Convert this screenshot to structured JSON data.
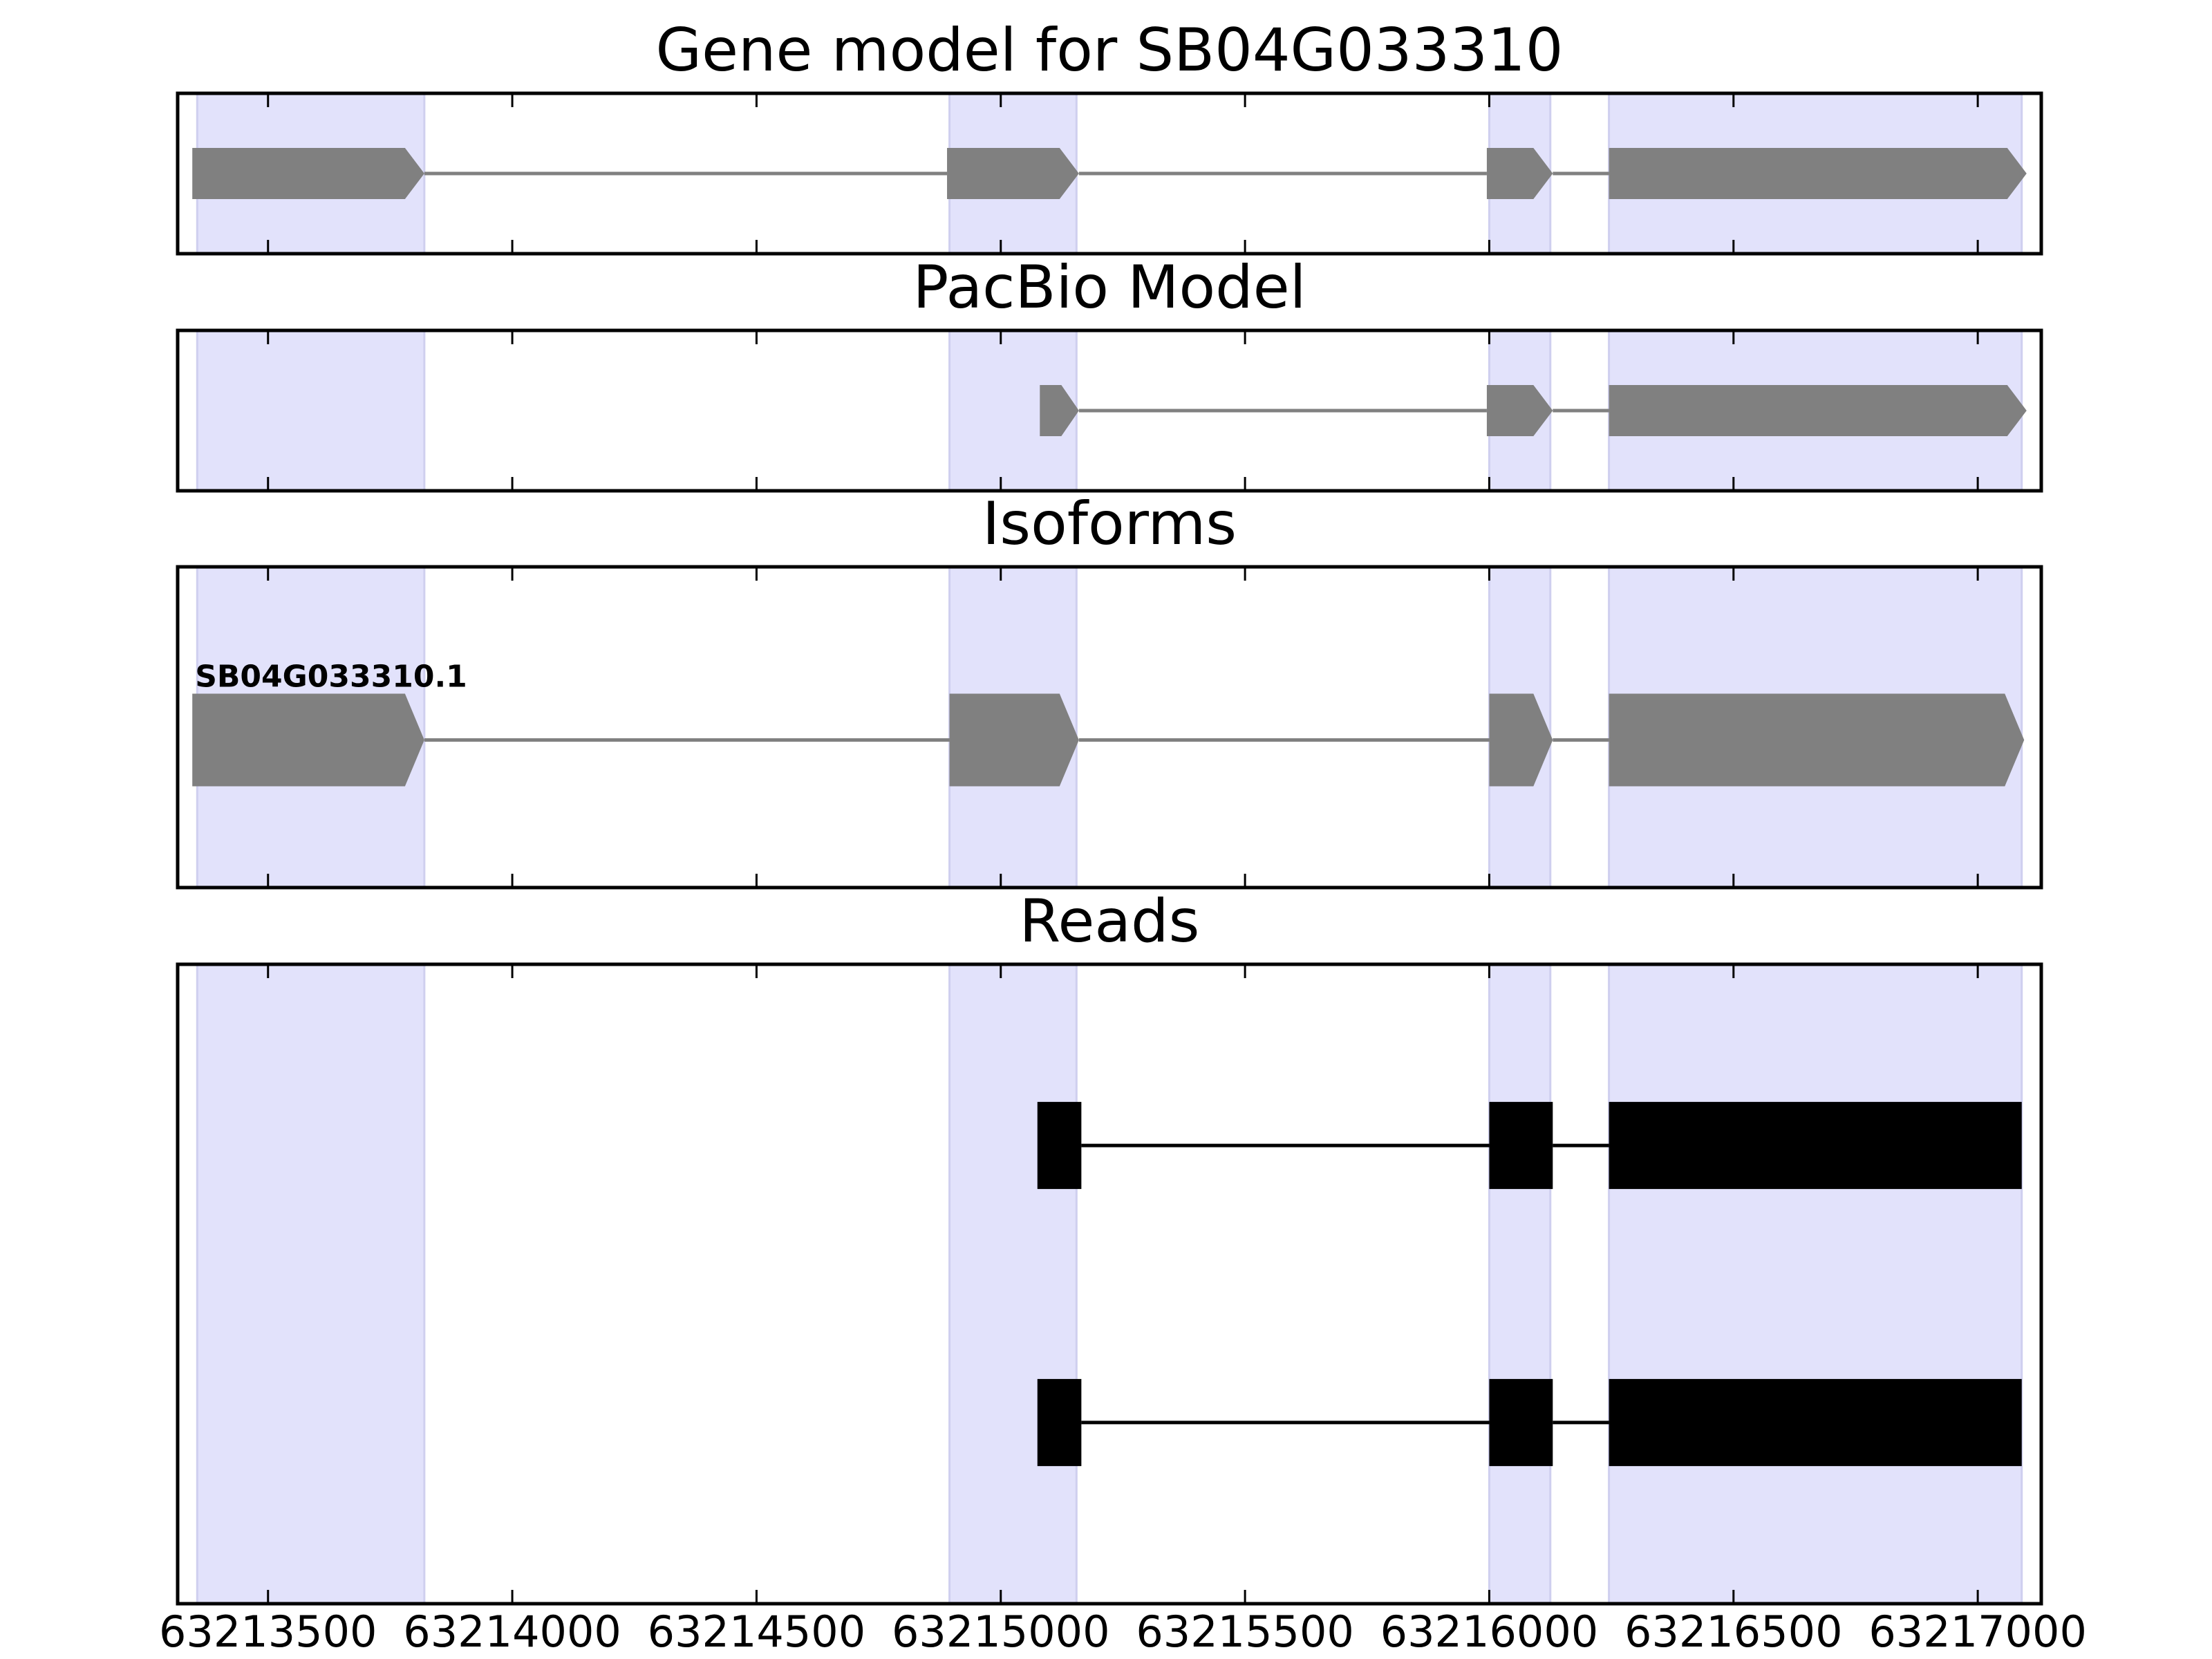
{
  "colors": {
    "highlight": "#e2e2fb",
    "highlight_edge": "#cfcfef",
    "model_exon": "#808080",
    "model_line": "#808080",
    "read_exon": "#000000",
    "read_line": "#000000",
    "frame": "#000000"
  },
  "chart_data": {
    "type": "gene-track",
    "xlim": [
      63213315,
      63217130
    ],
    "x_ticks": [
      63213500,
      63214000,
      63214500,
      63215000,
      63215500,
      63216000,
      63216500,
      63217000
    ],
    "x_tick_labels": [
      "63213500",
      "63214000",
      "63214500",
      "63215000",
      "63215500",
      "63216000",
      "63216500",
      "63217000"
    ],
    "highlight_regions": [
      [
        63213355,
        63213820
      ],
      [
        63214895,
        63215155
      ],
      [
        63216000,
        63216125
      ],
      [
        63216245,
        63217090
      ]
    ],
    "panels": [
      {
        "title": "Gene model for SB04G033310",
        "kind": "model",
        "tracks": [
          {
            "label": "",
            "exons": [
              [
                63213345,
                63213820
              ],
              [
                63214890,
                63215160
              ],
              [
                63215995,
                63216130
              ],
              [
                63216245,
                63217100
              ]
            ]
          }
        ]
      },
      {
        "title": "PacBio Model",
        "kind": "model",
        "tracks": [
          {
            "label": "",
            "exons": [
              [
                63215080,
                63215160
              ],
              [
                63215995,
                63216130
              ],
              [
                63216245,
                63217100
              ]
            ]
          }
        ]
      },
      {
        "title": "Isoforms",
        "kind": "model",
        "tracks": [
          {
            "label": "SB04G033310.1",
            "exons": [
              [
                63213345,
                63213820
              ],
              [
                63214895,
                63215160
              ],
              [
                63216000,
                63216130
              ],
              [
                63216245,
                63217095
              ]
            ]
          }
        ]
      },
      {
        "title": "Reads",
        "kind": "reads",
        "tracks": [
          {
            "label": "",
            "exons": [
              [
                63215075,
                63215165
              ],
              [
                63216000,
                63216130
              ],
              [
                63216245,
                63217090
              ]
            ]
          },
          {
            "label": "",
            "exons": [
              [
                63215075,
                63215165
              ],
              [
                63216000,
                63216130
              ],
              [
                63216245,
                63217090
              ]
            ]
          }
        ]
      }
    ]
  }
}
